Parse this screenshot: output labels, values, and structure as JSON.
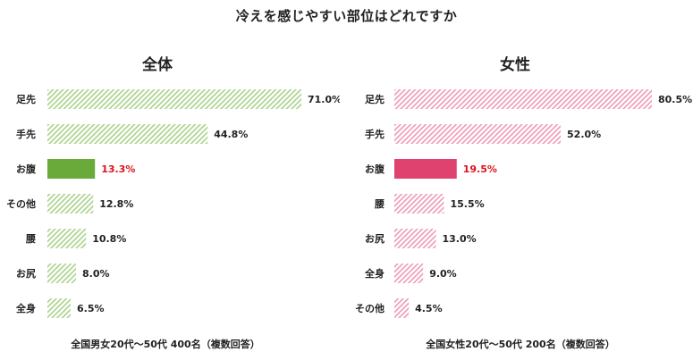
{
  "title": "冷えを感じやすい部位はどれですか",
  "chart_data": [
    {
      "type": "bar",
      "orientation": "horizontal",
      "title": "全体",
      "categories": [
        "足先",
        "手先",
        "お腹",
        "その他",
        "腰",
        "お尻",
        "全身"
      ],
      "values": [
        71.0,
        44.8,
        13.3,
        12.8,
        10.8,
        8.0,
        6.5
      ],
      "labels": [
        "71.0%",
        "44.8%",
        "13.3%",
        "12.8%",
        "10.8%",
        "8.0%",
        "6.5%"
      ],
      "highlight": "お腹",
      "xlim": [
        0,
        71.0
      ],
      "grid": false,
      "colors": {
        "hatch": "#a9d28a",
        "highlight": "#6aaa3a",
        "highlight_text": "#e0101a"
      },
      "footnote": "全国男女20代〜50代 400名（複数回答）"
    },
    {
      "type": "bar",
      "orientation": "horizontal",
      "title": "女性",
      "categories": [
        "足先",
        "手先",
        "お腹",
        "腰",
        "お尻",
        "全身",
        "その他"
      ],
      "values": [
        80.5,
        52.0,
        19.5,
        15.5,
        13.0,
        9.0,
        4.5
      ],
      "labels": [
        "80.5%",
        "52.0%",
        "19.5%",
        "15.5%",
        "13.0%",
        "9.0%",
        "4.5%"
      ],
      "highlight": "お腹",
      "xlim": [
        0,
        80.5
      ],
      "grid": false,
      "colors": {
        "hatch": "#ee9ab6",
        "highlight": "#e0426f",
        "highlight_text": "#e0101a"
      },
      "footnote": "全国女性20代〜50代 200名（複数回答）"
    }
  ]
}
